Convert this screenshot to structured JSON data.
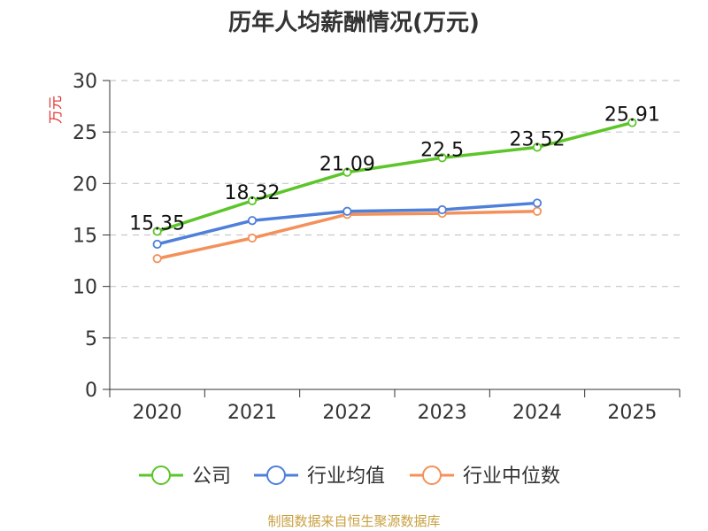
{
  "chart_data": {
    "type": "line",
    "title": "历年人均薪酬情况(万元)",
    "ylabel": "万元",
    "xlabel": "",
    "categories": [
      "2020",
      "2021",
      "2022",
      "2023",
      "2024",
      "2025"
    ],
    "ylim": [
      0,
      30
    ],
    "yticks": [
      0,
      5,
      10,
      15,
      20,
      25,
      30
    ],
    "grid": "horizontal-dashed",
    "legend_position": "bottom",
    "series": [
      {
        "name": "公司",
        "color": "#5cc529",
        "values": [
          15.35,
          18.32,
          21.09,
          22.5,
          23.52,
          25.91
        ],
        "labels": [
          "15.35",
          "18.32",
          "21.09",
          "22.5",
          "23.52",
          "25.91"
        ]
      },
      {
        "name": "行业均值",
        "color": "#4e7fd9",
        "values": [
          14.1,
          16.4,
          17.3,
          17.45,
          18.1,
          null
        ]
      },
      {
        "name": "行业中位数",
        "color": "#f4905a",
        "values": [
          12.7,
          14.7,
          17.0,
          17.1,
          17.3,
          null
        ]
      }
    ]
  },
  "ylabel_color": "#e0302c",
  "source_text": "制图数据来自恒生聚源数据库",
  "source_color": "#c8a040"
}
